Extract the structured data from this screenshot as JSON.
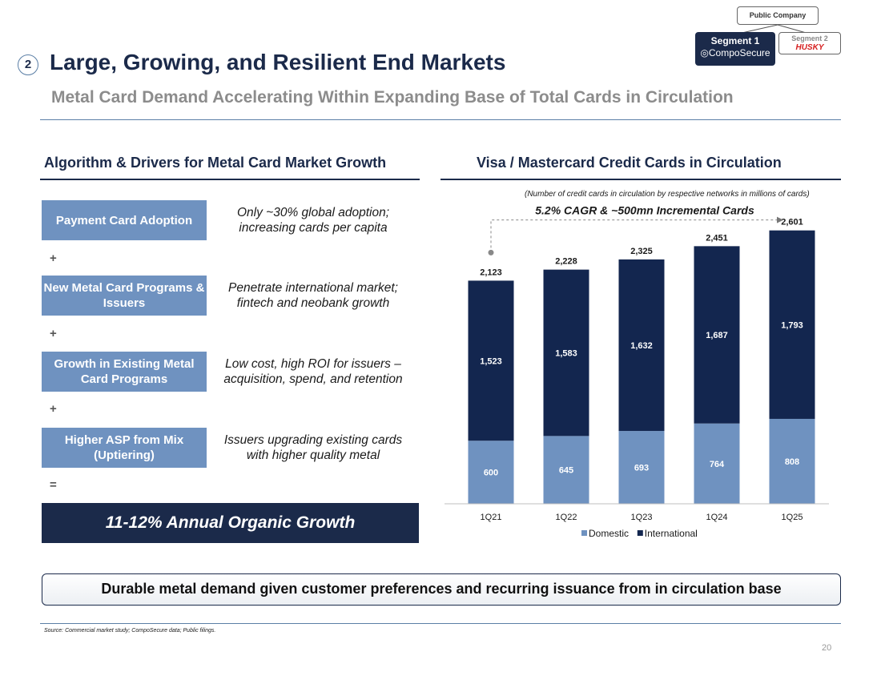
{
  "header": {
    "section_number": "2",
    "title": "Large, Growing, and Resilient End Markets",
    "subtitle": "Metal Card Demand Accelerating Within Expanding Base of Total Cards in Circulation"
  },
  "org_chart": {
    "parent": "Public Company",
    "segment1_label": "Segment 1",
    "segment1_brand": "CompoSecure",
    "segment2_label": "Segment 2",
    "segment2_brand": "HUSKY"
  },
  "left_section": {
    "heading": "Algorithm & Drivers for Metal Card Market Growth",
    "drivers": [
      {
        "label": "Payment Card Adoption",
        "description": "Only ~30% global adoption; increasing cards per capita"
      },
      {
        "label": "New Metal Card Programs & Issuers",
        "description": "Penetrate international market; fintech and neobank growth"
      },
      {
        "label": "Growth in Existing Metal Card Programs",
        "description": "Low cost, high ROI for issuers – acquisition, spend, and retention"
      },
      {
        "label": "Higher ASP from Mix (Uptiering)",
        "description": "Issuers upgrading existing cards with higher quality metal"
      }
    ],
    "operators": [
      "+",
      "+",
      "+",
      "="
    ],
    "result": "11-12% Annual Organic Growth"
  },
  "right_section": {
    "heading": "Visa / Mastercard Credit Cards in Circulation",
    "note": "(Number of credit cards in circulation by respective networks in millions of cards)"
  },
  "chart_data": {
    "type": "bar",
    "stacked": true,
    "categories": [
      "1Q21",
      "1Q22",
      "1Q23",
      "1Q24",
      "1Q25"
    ],
    "series": [
      {
        "name": "Domestic",
        "values": [
          600,
          645,
          693,
          764,
          808
        ],
        "color": "#6f92c0"
      },
      {
        "name": "International",
        "values": [
          1523,
          1583,
          1632,
          1687,
          1793
        ],
        "color": "#13264f"
      }
    ],
    "totals": [
      2123,
      2228,
      2325,
      2451,
      2601
    ],
    "total_labels": [
      "2,123",
      "2,228",
      "2,325",
      "2,451",
      "2,601"
    ],
    "value_labels": {
      "Domestic": [
        "600",
        "645",
        "693",
        "764",
        "808"
      ],
      "International": [
        "1,523",
        "1,583",
        "1,632",
        "1,687",
        "1,793"
      ]
    },
    "annotation": "5.2% CAGR & ~500mn Incremental Cards",
    "legend_position": "bottom",
    "ylim": [
      0,
      2850
    ],
    "grid": false
  },
  "banner": "Durable metal demand given customer preferences and recurring issuance from in circulation base",
  "footer": {
    "source": "Source: Commercial market study; CompoSecure data; Public filings.",
    "page_number": "20"
  },
  "colors": {
    "navy": "#1b2a4a",
    "bar_international": "#13264f",
    "bar_domestic": "#6f92c0",
    "driver_box": "#6f92c0",
    "accent_rule": "#5b7fa6",
    "husky_red": "#d62020"
  }
}
